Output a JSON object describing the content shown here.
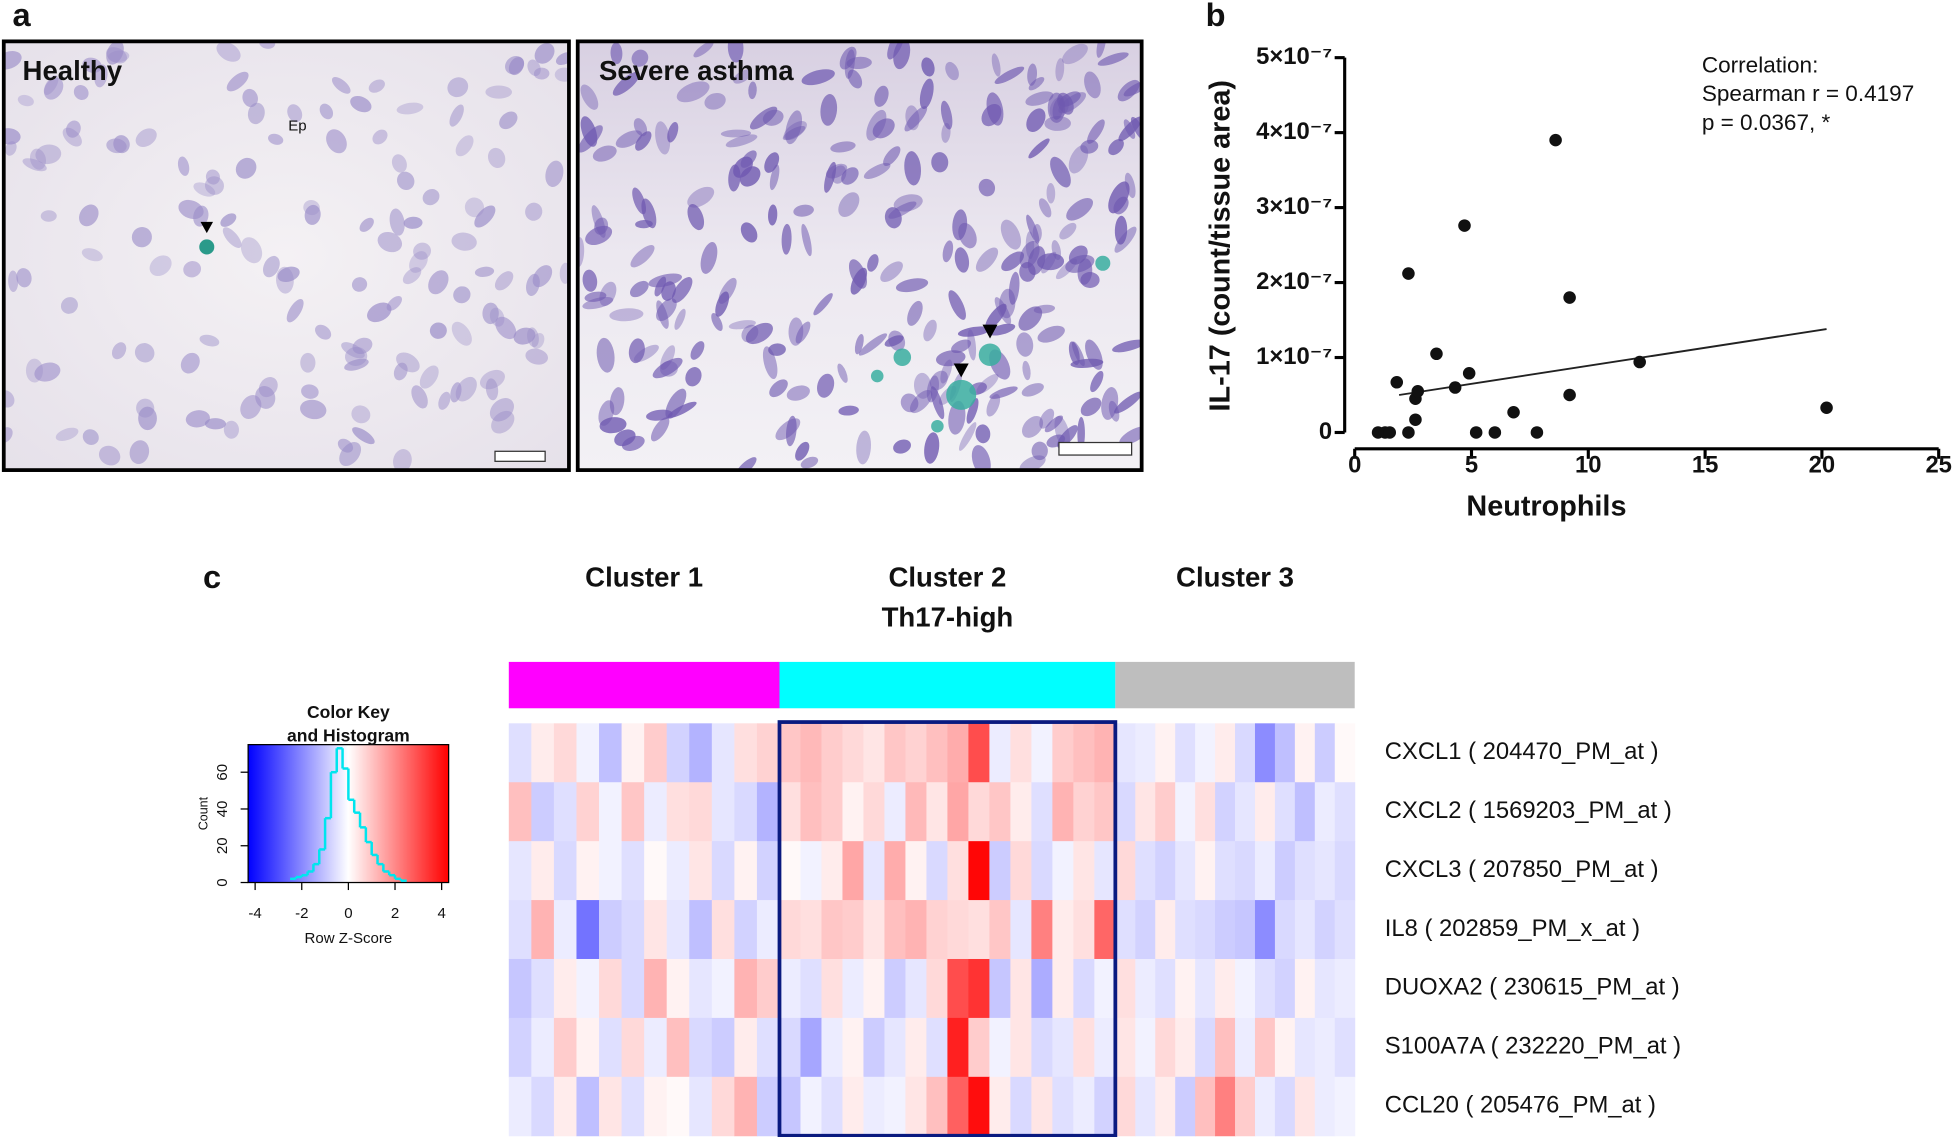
{
  "panel_labels": [
    "a",
    "b",
    "c"
  ],
  "micrographs": [
    {
      "label": "Healthy",
      "annotation": "Ep"
    },
    {
      "label": "Severe asthma"
    }
  ],
  "chart_data": [
    {
      "type": "scatter",
      "xlabel": "Neutrophils",
      "ylabel": "IL-17 (count/tissue area)",
      "annotation": [
        "Correlation:",
        "Spearman r = 0.4197",
        "p = 0.0367, *"
      ],
      "x": [
        1.0,
        1.3,
        1.5,
        1.8,
        2.3,
        2.3,
        2.6,
        2.6,
        2.7,
        3.5,
        4.3,
        4.7,
        4.9,
        5.2,
        6.0,
        6.8,
        7.8,
        8.6,
        9.2,
        9.2,
        12.2,
        20.2
      ],
      "y": [
        0,
        0,
        0,
        6.7e-08,
        2.12e-07,
        0,
        1.7e-08,
        4.5e-08,
        5.5e-08,
        1.05e-07,
        6e-08,
        2.76e-07,
        7.9e-08,
        0,
        0,
        2.7e-08,
        0,
        3.9e-07,
        1.8e-07,
        5e-08,
        9.4e-08,
        3.3e-08
      ],
      "color": "#111111",
      "trendline": {
        "x": [
          1.9,
          20.2
        ],
        "y": [
          5e-08,
          1.38e-07
        ]
      },
      "xlim": [
        0,
        25
      ],
      "xticks": [
        0,
        5,
        10,
        15,
        20,
        25
      ],
      "ylim": [
        0,
        5e-07
      ],
      "yticks": [
        0,
        {
          "value": 1e-07,
          "label": "1×10⁻⁷"
        },
        {
          "value": 2e-07,
          "label": "2×10⁻⁷"
        },
        {
          "value": 3e-07,
          "label": "3×10⁻⁷"
        },
        {
          "value": 4e-07,
          "label": "4×10⁻⁷"
        },
        {
          "value": 5e-07,
          "label": "5×10⁻⁷"
        }
      ]
    },
    {
      "type": "heatmap",
      "clusters": [
        {
          "name": "Cluster 1",
          "color": "#ff00ff"
        },
        {
          "name": "Cluster 2",
          "note": "Th17-high",
          "color": "#00ffff",
          "highlight": "#0a1a80"
        },
        {
          "name": "Cluster 3",
          "color": "#bebebe"
        }
      ],
      "zlim": [
        -4,
        4
      ],
      "colors": [
        "#0000ff",
        "#ffffff",
        "#ff0000"
      ],
      "rows": [
        {
          "label": "CXCL1  ( 204470_PM_at )",
          "values": [
            [
              -0.5,
              0.3,
              0.6,
              -0.2,
              -1.0,
              0.2,
              0.8,
              -0.7,
              -1.2,
              -0.4,
              0.5,
              0.7
            ],
            [
              0.9,
              1.1,
              0.8,
              0.6,
              0.4,
              0.9,
              0.7,
              1.0,
              1.3,
              2.8,
              -0.3,
              0.5,
              -0.2,
              0.8,
              1.0,
              1.2
            ],
            [
              -0.4,
              -0.3,
              0.2,
              -0.5,
              -0.2,
              0.3,
              -0.6,
              -1.8,
              -1.0,
              0.2,
              -0.8,
              0.1
            ]
          ]
        },
        {
          "label": "CXCL2  ( 1569203_PM_at )",
          "values": [
            [
              1.0,
              -0.8,
              -0.5,
              0.7,
              -0.2,
              0.9,
              -0.3,
              0.5,
              0.6,
              -0.4,
              -0.6,
              -1.2
            ],
            [
              0.5,
              1.0,
              0.8,
              0.2,
              0.6,
              -0.3,
              1.1,
              0.4,
              1.4,
              0.6,
              0.9,
              0.3,
              -0.5,
              1.2,
              0.7,
              0.9
            ],
            [
              -0.6,
              0.4,
              0.8,
              -0.2,
              0.5,
              -0.7,
              -0.4,
              0.3,
              -0.5,
              -1.0,
              -0.3,
              -0.5
            ]
          ]
        },
        {
          "label": "CXCL3  ( 207850_PM_at )",
          "values": [
            [
              -0.4,
              0.3,
              -0.6,
              0.2,
              -0.2,
              -0.5,
              0.1,
              -0.3,
              0.4,
              -0.6,
              0.2,
              -0.7
            ],
            [
              0.1,
              -0.2,
              0.3,
              1.4,
              -0.4,
              1.3,
              0.2,
              -0.6,
              0.5,
              3.9,
              -0.8,
              0.6,
              -0.6,
              -0.2,
              0.4,
              -0.4
            ],
            [
              0.6,
              -0.5,
              -0.7,
              -0.4,
              0.2,
              -0.5,
              -0.6,
              -0.3,
              -0.8,
              -0.5,
              -0.4,
              -0.6
            ]
          ]
        },
        {
          "label": "IL8  ( 202859_PM_x_at )",
          "values": [
            [
              -0.5,
              1.2,
              -0.3,
              -2.2,
              -0.8,
              -0.6,
              0.4,
              -0.4,
              -1.0,
              0.5,
              -0.7,
              -0.3
            ],
            [
              0.6,
              0.5,
              0.9,
              0.8,
              0.4,
              1.0,
              1.2,
              0.7,
              0.6,
              0.5,
              0.9,
              -0.4,
              2.0,
              0.3,
              0.5,
              2.4
            ],
            [
              -0.5,
              -0.7,
              0.3,
              -0.5,
              -0.6,
              -0.8,
              -0.9,
              -1.8,
              -0.6,
              -0.4,
              -0.7,
              -0.5
            ]
          ]
        },
        {
          "label": "DUOXA2  ( 230615_PM_at )",
          "values": [
            [
              -0.9,
              -0.5,
              0.3,
              -0.2,
              0.6,
              -0.6,
              1.2,
              0.2,
              -0.4,
              -0.2,
              1.2,
              0.8
            ],
            [
              -0.3,
              -0.5,
              0.5,
              -0.3,
              0.2,
              -0.8,
              -0.4,
              0.6,
              2.8,
              3.2,
              -0.9,
              0.4,
              -1.3,
              0.3,
              -0.6,
              -0.2
            ],
            [
              0.5,
              -0.3,
              -0.5,
              0.2,
              -0.4,
              0.3,
              -0.2,
              -0.5,
              -0.7,
              0.2,
              -0.4,
              -0.3
            ]
          ]
        },
        {
          "label": "S100A7A  ( 232220_PM_at )",
          "values": [
            [
              -0.7,
              -0.3,
              0.8,
              0.2,
              -0.5,
              0.6,
              -0.3,
              1.0,
              -0.6,
              -0.8,
              0.3,
              -0.5
            ],
            [
              -0.6,
              -1.4,
              -0.3,
              0.2,
              -0.8,
              -0.4,
              0.3,
              -0.5,
              3.5,
              0.8,
              -0.2,
              0.4,
              -0.6,
              -0.4,
              0.5,
              -0.3
            ],
            [
              0.4,
              -0.2,
              0.6,
              0.3,
              -0.6,
              1.0,
              -0.3,
              0.9,
              0.2,
              -0.4,
              -0.3,
              -0.5
            ]
          ]
        },
        {
          "label": "CCL20  ( 205476_PM_at )",
          "values": [
            [
              -0.3,
              -0.6,
              0.3,
              -1.0,
              0.4,
              -0.5,
              0.2,
              0.1,
              -0.4,
              0.6,
              1.2,
              -0.8
            ],
            [
              -0.9,
              -0.2,
              -0.5,
              0.3,
              -0.3,
              -0.2,
              0.4,
              1.0,
              2.5,
              3.8,
              0.3,
              -0.6,
              0.4,
              -0.5,
              -0.3,
              -0.7
            ],
            [
              0.6,
              -0.4,
              0.3,
              -0.8,
              1.0,
              2.0,
              0.8,
              -0.3,
              -0.6,
              0.4,
              -0.3,
              -0.2
            ]
          ]
        }
      ]
    },
    {
      "type": "histogram",
      "title": [
        "Color Key",
        "and Histogram"
      ],
      "xlabel": "Row Z-Score",
      "ylabel": "Count",
      "bins": [
        -2.5,
        -2.25,
        -2,
        -1.75,
        -1.5,
        -1.25,
        -1,
        -0.75,
        -0.5,
        -0.25,
        0,
        0.25,
        0.5,
        0.75,
        1,
        1.25,
        1.5,
        1.75,
        2,
        2.25,
        2.5
      ],
      "counts": [
        2,
        3,
        4,
        6,
        10,
        18,
        35,
        60,
        73,
        62,
        45,
        38,
        30,
        22,
        15,
        10,
        6,
        4,
        2,
        1
      ],
      "color": "#00e5ee",
      "background": [
        "#0000ff",
        "#ffffff",
        "#ff0000"
      ],
      "xlim": [
        -4.3,
        4.3
      ],
      "xticks": [
        -4,
        -2,
        0,
        2,
        4
      ],
      "ylim": [
        0,
        75
      ],
      "yticks": [
        0,
        20,
        40,
        60
      ]
    }
  ]
}
